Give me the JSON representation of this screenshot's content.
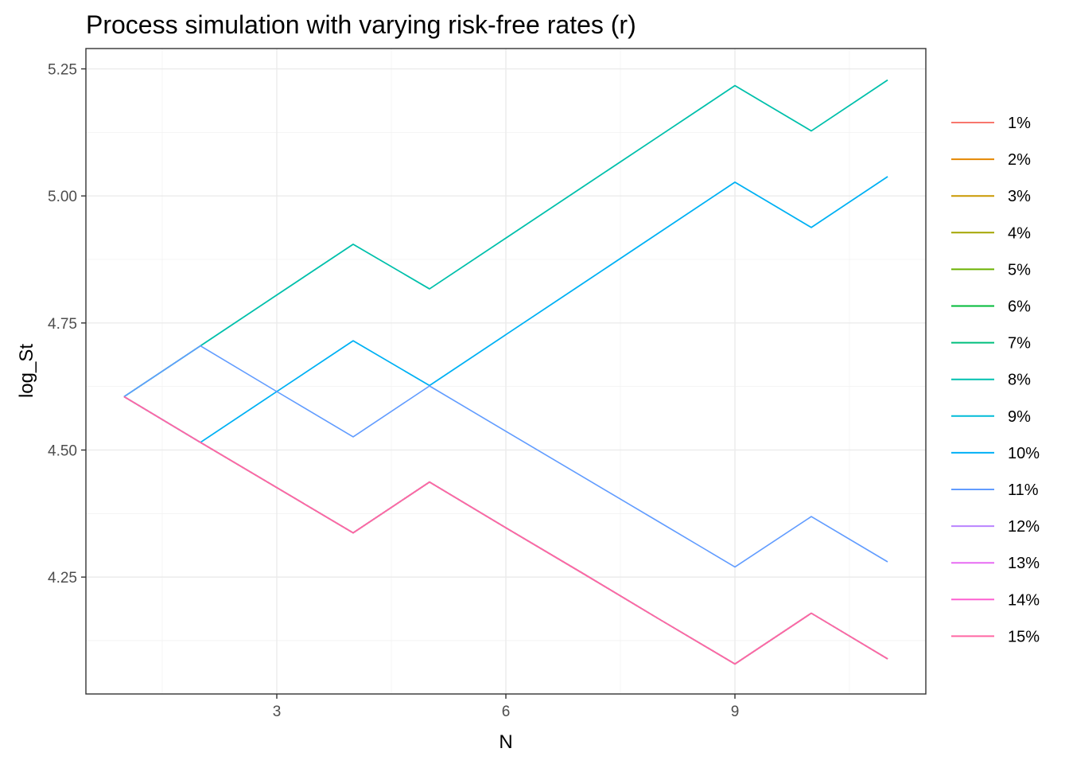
{
  "chart_data": {
    "type": "line",
    "title": "Process simulation with varying risk-free rates (r)",
    "xlabel": "N",
    "ylabel": "log_St",
    "xlim": [
      0.5,
      11.5
    ],
    "ylim": [
      4.02,
      5.29
    ],
    "x_ticks": [
      3,
      6,
      9
    ],
    "x_tick_labels": [
      "3",
      "6",
      "9"
    ],
    "y_ticks": [
      4.25,
      4.5,
      4.75,
      5.0,
      5.25
    ],
    "y_tick_labels": [
      "4.25",
      "4.50",
      "4.75",
      "5.00",
      "5.25"
    ],
    "grid": true,
    "legend_position": "right",
    "series": [
      {
        "name": "1%",
        "color": "#F8766D",
        "x": [
          1,
          2,
          3,
          4,
          5,
          6,
          7,
          8,
          9,
          10,
          11
        ],
        "y": [
          4.605,
          4.515,
          4.426,
          4.337,
          4.437,
          4.347,
          4.258,
          4.168,
          4.079,
          4.179,
          4.089
        ]
      },
      {
        "name": "2%",
        "color": "#E58700",
        "x": [
          1,
          2,
          3,
          4,
          5,
          6,
          7,
          8,
          9,
          10,
          11
        ],
        "y": [
          4.605,
          4.515,
          4.426,
          4.337,
          4.437,
          4.347,
          4.258,
          4.168,
          4.079,
          4.179,
          4.089
        ]
      },
      {
        "name": "3%",
        "color": "#C99800",
        "x": [
          1,
          2,
          3,
          4,
          5,
          6,
          7,
          8,
          9,
          10,
          11
        ],
        "y": [
          4.605,
          4.515,
          4.426,
          4.337,
          4.437,
          4.347,
          4.258,
          4.168,
          4.079,
          4.179,
          4.089
        ]
      },
      {
        "name": "4%",
        "color": "#A3A500",
        "x": [
          1,
          2,
          3,
          4,
          5,
          6,
          7,
          8,
          9,
          10,
          11
        ],
        "y": [
          4.605,
          4.515,
          4.426,
          4.337,
          4.437,
          4.347,
          4.258,
          4.168,
          4.079,
          4.179,
          4.089
        ]
      },
      {
        "name": "5%",
        "color": "#6BB100",
        "x": [
          1,
          2,
          3,
          4,
          5,
          6,
          7,
          8,
          9,
          10,
          11
        ],
        "y": [
          4.605,
          4.515,
          4.426,
          4.337,
          4.437,
          4.347,
          4.258,
          4.168,
          4.079,
          4.179,
          4.089
        ]
      },
      {
        "name": "6%",
        "color": "#00BA38",
        "x": [
          1,
          2,
          3,
          4,
          5,
          6,
          7,
          8,
          9,
          10,
          11
        ],
        "y": [
          4.605,
          4.515,
          4.426,
          4.337,
          4.437,
          4.347,
          4.258,
          4.168,
          4.079,
          4.179,
          4.089
        ]
      },
      {
        "name": "7%",
        "color": "#00BF7D",
        "x": [
          1,
          2,
          3,
          4,
          5,
          6,
          7,
          8,
          9,
          10,
          11
        ],
        "y": [
          4.605,
          4.705,
          4.805,
          4.905,
          4.817,
          4.917,
          5.017,
          5.117,
          5.217,
          5.128,
          5.228
        ]
      },
      {
        "name": "8%",
        "color": "#00C0AF",
        "x": [
          1,
          2,
          3,
          4,
          5,
          6,
          7,
          8,
          9,
          10,
          11
        ],
        "y": [
          4.605,
          4.705,
          4.805,
          4.905,
          4.817,
          4.917,
          5.017,
          5.117,
          5.217,
          5.128,
          5.228
        ]
      },
      {
        "name": "9%",
        "color": "#00BCD8",
        "x": [
          1,
          2,
          3,
          4,
          5,
          6,
          7,
          8,
          9,
          10,
          11
        ],
        "y": [
          4.605,
          4.515,
          4.615,
          4.715,
          4.627,
          4.727,
          4.827,
          4.927,
          5.027,
          4.938,
          5.038
        ]
      },
      {
        "name": "10%",
        "color": "#00B0F6",
        "x": [
          1,
          2,
          3,
          4,
          5,
          6,
          7,
          8,
          9,
          10,
          11
        ],
        "y": [
          4.605,
          4.515,
          4.615,
          4.715,
          4.627,
          4.727,
          4.827,
          4.927,
          5.027,
          4.938,
          5.038
        ]
      },
      {
        "name": "11%",
        "color": "#619CFF",
        "x": [
          1,
          2,
          3,
          4,
          5,
          6,
          7,
          8,
          9,
          10,
          11
        ],
        "y": [
          4.605,
          4.705,
          4.615,
          4.526,
          4.626,
          4.537,
          4.448,
          4.359,
          4.27,
          4.369,
          4.28
        ]
      },
      {
        "name": "12%",
        "color": "#B983FF",
        "x": [
          1,
          2,
          3,
          4,
          5,
          6,
          7,
          8,
          9,
          10,
          11
        ],
        "y": [
          4.605,
          4.515,
          4.426,
          4.337,
          4.437,
          4.347,
          4.258,
          4.168,
          4.079,
          4.179,
          4.089
        ]
      },
      {
        "name": "13%",
        "color": "#E76BF3",
        "x": [
          1,
          2,
          3,
          4,
          5,
          6,
          7,
          8,
          9,
          10,
          11
        ],
        "y": [
          4.605,
          4.515,
          4.426,
          4.337,
          4.437,
          4.347,
          4.258,
          4.168,
          4.079,
          4.179,
          4.089
        ]
      },
      {
        "name": "14%",
        "color": "#FD61D1",
        "x": [
          1,
          2,
          3,
          4,
          5,
          6,
          7,
          8,
          9,
          10,
          11
        ],
        "y": [
          4.605,
          4.515,
          4.426,
          4.337,
          4.437,
          4.347,
          4.258,
          4.168,
          4.079,
          4.179,
          4.089
        ]
      },
      {
        "name": "15%",
        "color": "#FF67A4",
        "x": [
          1,
          2,
          3,
          4,
          5,
          6,
          7,
          8,
          9,
          10,
          11
        ],
        "y": [
          4.605,
          4.515,
          4.426,
          4.337,
          4.437,
          4.347,
          4.258,
          4.168,
          4.079,
          4.179,
          4.089
        ]
      }
    ]
  }
}
